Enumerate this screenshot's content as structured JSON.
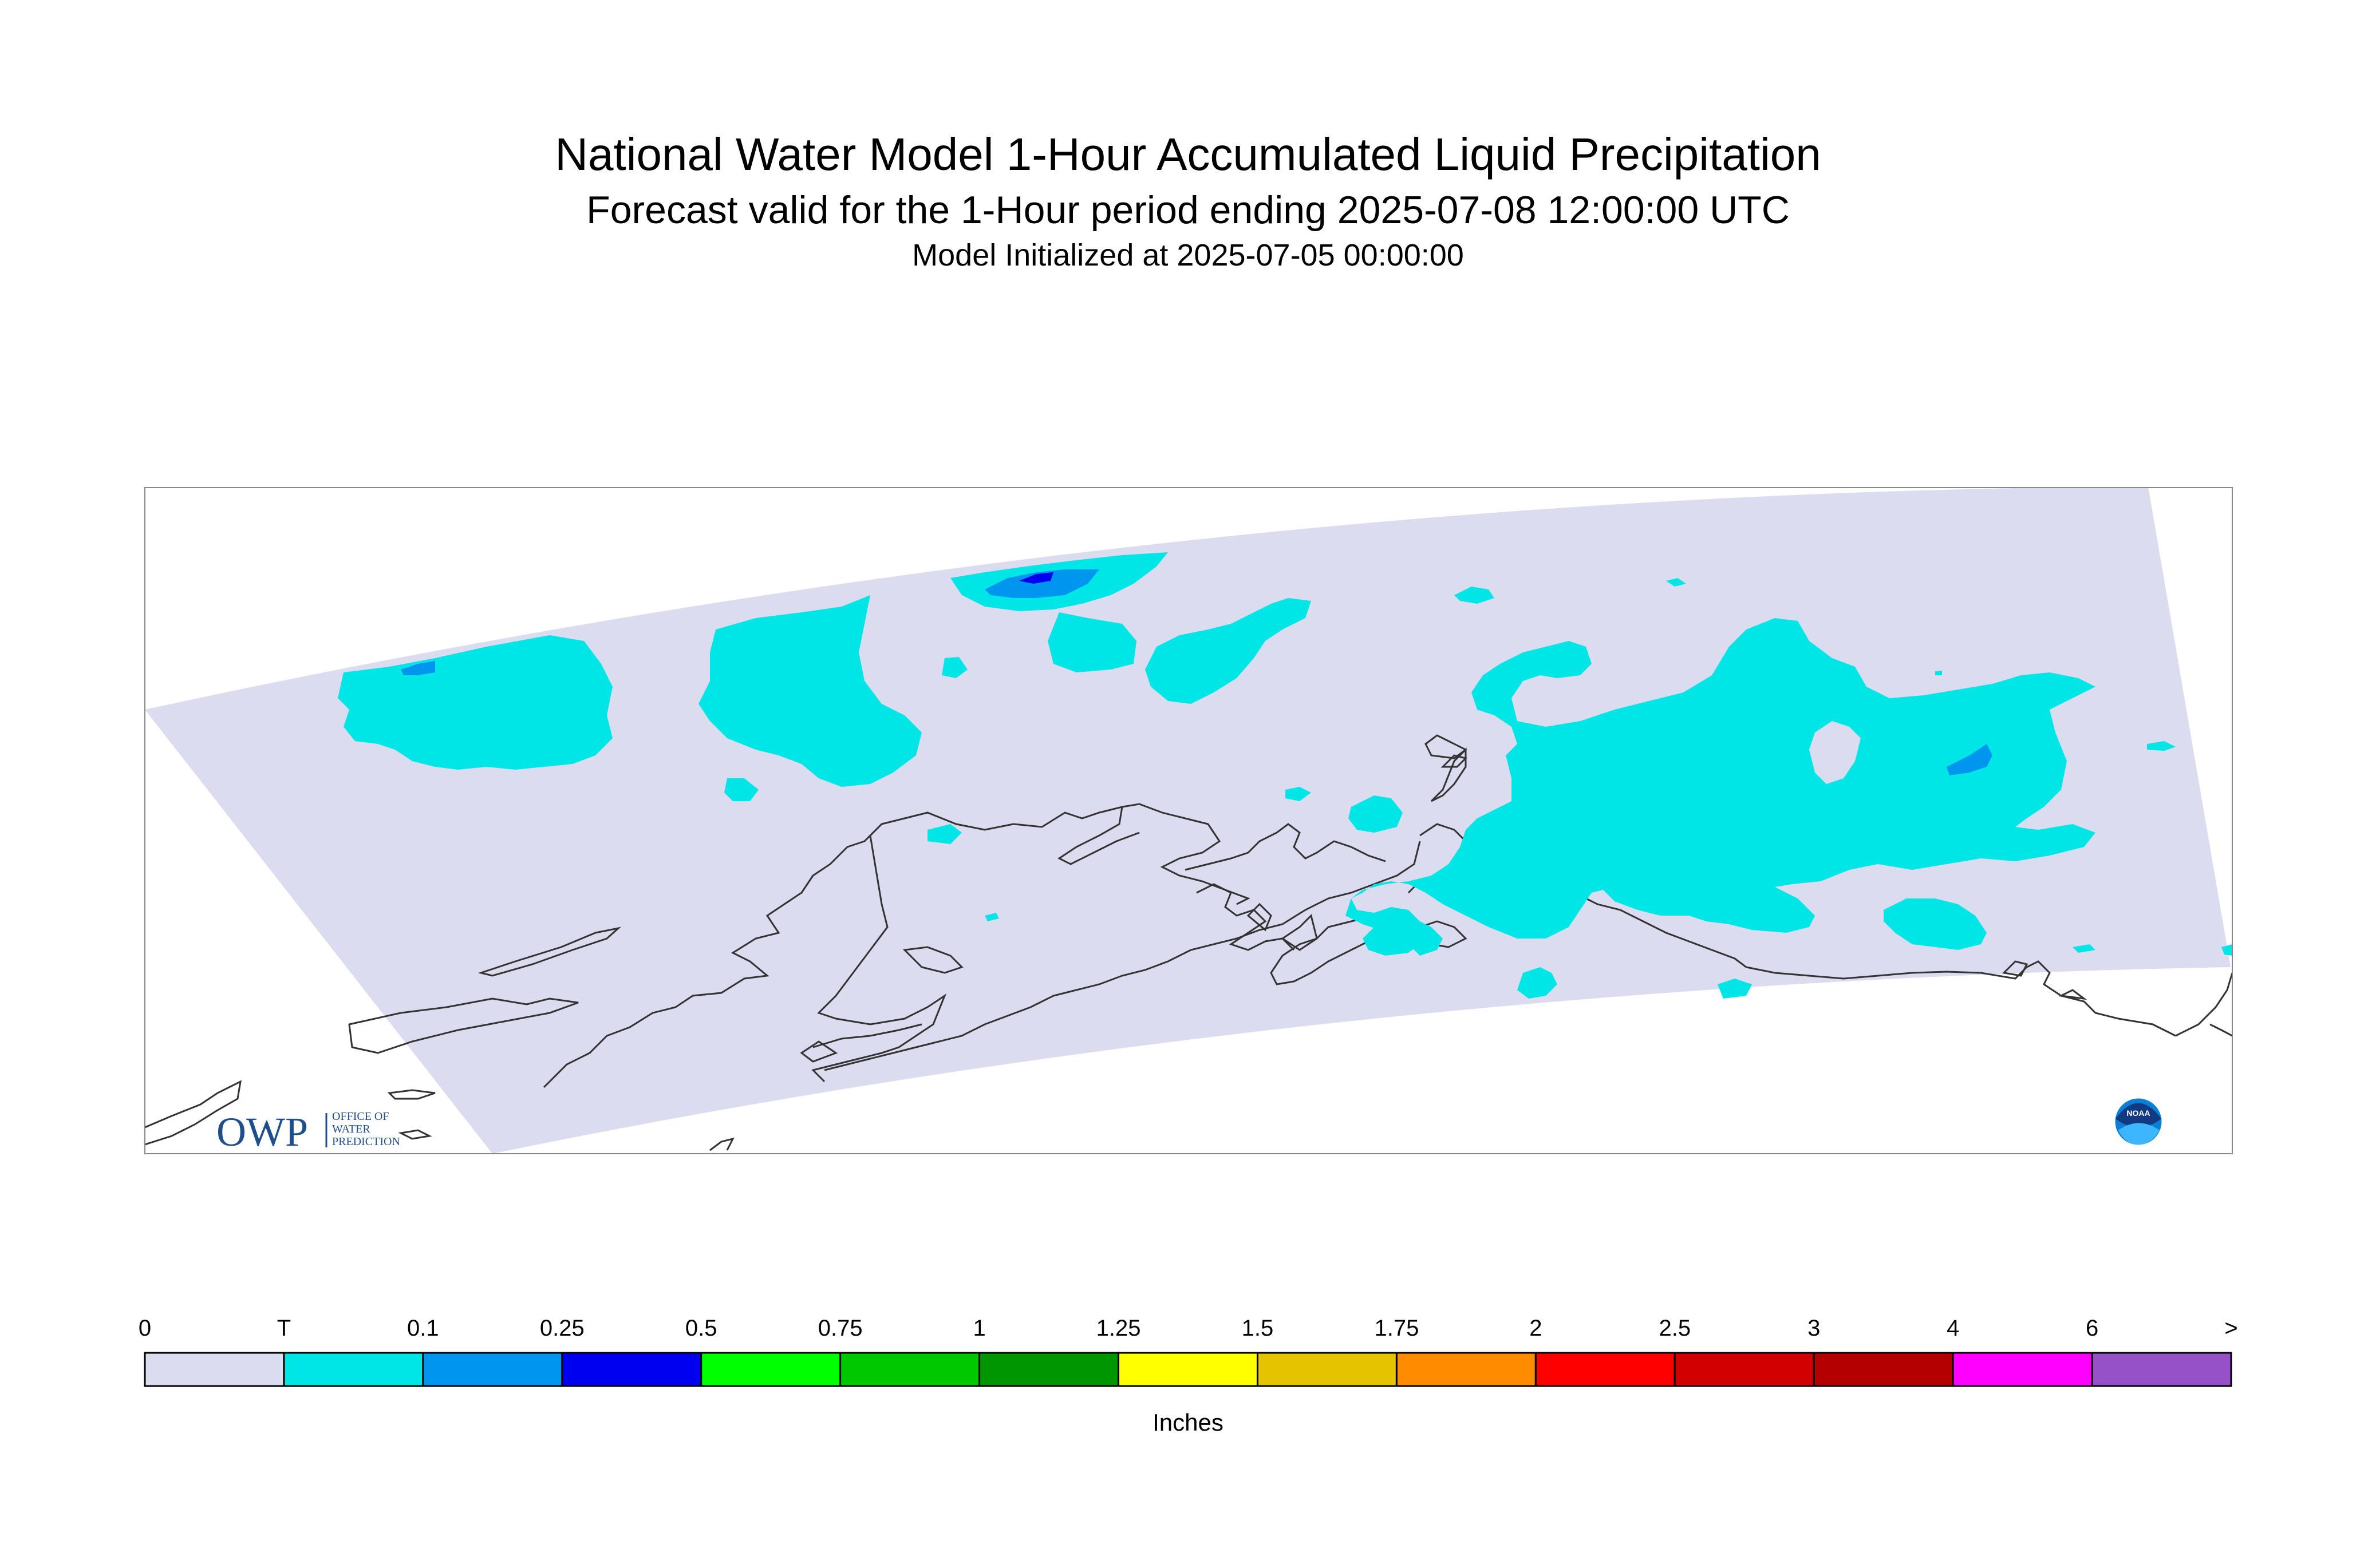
{
  "title": {
    "main": "National Water Model 1-Hour Accumulated Liquid Precipitation",
    "forecast": "Forecast valid for the 1-Hour period ending 2025-07-08 12:00:00 UTC",
    "initialized": "Model Initialized at 2025-07-05 00:00:00"
  },
  "logos": {
    "owp_mark": "OWP",
    "owp_text": [
      "OFFICE OF",
      "WATER",
      "PREDICTION"
    ],
    "noaa_text": "NOAA"
  },
  "colors": {
    "domain_fill": "#dcdcf0",
    "coastline": "#333333",
    "trace": "#00e6e6"
  },
  "legend": {
    "labels": [
      "0",
      "T",
      "0.1",
      "0.25",
      "0.5",
      "0.75",
      "1",
      "1.25",
      "1.5",
      "1.75",
      "2",
      "2.5",
      "3",
      "4",
      "6",
      ">"
    ],
    "colors": [
      "#dcdcf0",
      "#00e6e6",
      "#0096f0",
      "#0000f0",
      "#00ff00",
      "#00c800",
      "#009600",
      "#ffff00",
      "#e6c300",
      "#ff8c00",
      "#ff0000",
      "#d20000",
      "#b40000",
      "#ff00ff",
      "#9650c8"
    ],
    "units": "Inches"
  }
}
